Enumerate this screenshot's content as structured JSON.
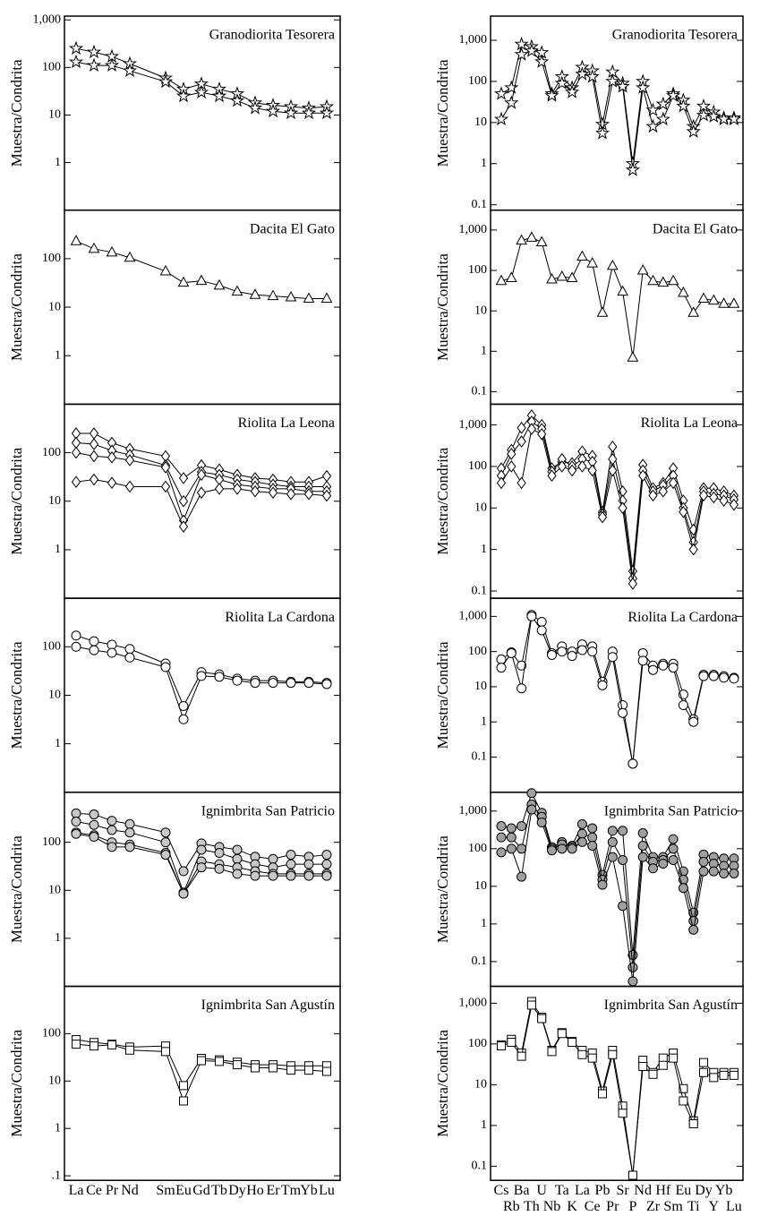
{
  "chart_data": [
    {
      "type": "line",
      "title": "Granodiorita Tesorera",
      "ylabel": "Muestra/Condrita",
      "marker": "star",
      "fill": "#ffffff",
      "ylim": [
        0.1,
        1200
      ],
      "yticks": [
        1,
        10,
        100,
        {
          "value": 1000,
          "label": "1,000"
        }
      ],
      "series": [
        {
          "color": "#000000",
          "values": [
            250,
            210,
            170,
            120,
            60,
            35,
            45,
            35,
            28,
            18,
            16,
            15,
            14,
            15
          ]
        },
        {
          "color": "#000000",
          "values": [
            130,
            110,
            110,
            85,
            50,
            25,
            30,
            25,
            20,
            14,
            12,
            11,
            11,
            11
          ]
        }
      ]
    },
    {
      "type": "line",
      "title": "Dacita El Gato",
      "ylabel": "Muestra/Condrita",
      "marker": "triangle",
      "fill": "#ffffff",
      "ylim": [
        0.1,
        1000
      ],
      "yticks": [
        1,
        10,
        100
      ],
      "series": [
        {
          "color": "#000000",
          "values": [
            230,
            160,
            135,
            105,
            55,
            32,
            35,
            28,
            21,
            18,
            17,
            16,
            15,
            15
          ]
        }
      ]
    },
    {
      "type": "line",
      "title": "Riolita La Leona",
      "ylabel": "Muestra/Condrita",
      "marker": "diamond",
      "fill": "#ffffff",
      "ylim": [
        0.1,
        1000
      ],
      "yticks": [
        1,
        10,
        100
      ],
      "series": [
        {
          "color": "#000000",
          "values": [
            250,
            250,
            160,
            120,
            85,
            30,
            55,
            45,
            35,
            30,
            28,
            25,
            25,
            33
          ]
        },
        {
          "color": "#000000",
          "values": [
            160,
            150,
            110,
            90,
            55,
            10,
            40,
            35,
            28,
            25,
            22,
            20,
            20,
            20
          ]
        },
        {
          "color": "#000000",
          "values": [
            100,
            85,
            80,
            70,
            50,
            4,
            35,
            28,
            22,
            20,
            18,
            18,
            16,
            16
          ]
        },
        {
          "color": "#000000",
          "values": [
            25,
            28,
            24,
            20,
            20,
            3,
            15,
            18,
            18,
            16,
            15,
            14,
            14,
            13
          ]
        }
      ]
    },
    {
      "type": "line",
      "title": "Riolita La Cardona",
      "ylabel": "Muestra/Condrita",
      "marker": "circle",
      "fill": "#ffffff",
      "ylim": [
        0.1,
        1000
      ],
      "yticks": [
        1,
        10,
        100
      ],
      "series": [
        {
          "color": "#000000",
          "values": [
            170,
            130,
            110,
            90,
            45,
            6,
            30,
            27,
            22,
            20,
            20,
            19,
            19,
            18
          ]
        },
        {
          "color": "#000000",
          "values": [
            100,
            85,
            75,
            60,
            38,
            3.2,
            25,
            24,
            20,
            18,
            18,
            18,
            18,
            17
          ]
        }
      ]
    },
    {
      "type": "line",
      "title": "Ignimbrita San Patricio",
      "ylabel": "Muestra/Condrita",
      "marker": "circle",
      "fill": "#c8c8c8",
      "ylim": [
        0.1,
        1100
      ],
      "yticks": [
        1,
        10,
        100
      ],
      "series": [
        {
          "color": "#000000",
          "values": [
            400,
            380,
            280,
            240,
            160,
            25,
            95,
            80,
            70,
            50,
            45,
            55,
            50,
            55
          ]
        },
        {
          "color": "#000000",
          "values": [
            270,
            230,
            180,
            160,
            100,
            9,
            70,
            60,
            45,
            35,
            30,
            35,
            35,
            35
          ]
        },
        {
          "color": "#000000",
          "values": [
            160,
            140,
            100,
            90,
            60,
            8.5,
            40,
            35,
            30,
            25,
            22,
            22,
            22,
            22
          ]
        },
        {
          "color": "#000000",
          "values": [
            150,
            130,
            80,
            80,
            55,
            8.5,
            30,
            28,
            22,
            20,
            20,
            20,
            20,
            20
          ]
        }
      ]
    },
    {
      "type": "line",
      "title": "Ignimbrita San Agustín",
      "ylabel": "Muestra/Condrita",
      "marker": "square",
      "fill": "#ffffff",
      "ylim": [
        0.08,
        1000
      ],
      "yticks": [
        {
          "value": 0.1,
          "label": ".1"
        },
        1,
        10,
        100
      ],
      "categories": [
        "La",
        "Ce",
        "Pr",
        "Nd",
        "Sm",
        "Eu",
        "Gd",
        "Tb",
        "Dy",
        "Ho",
        "Er",
        "Tm",
        "Yb",
        "Lu"
      ],
      "series": [
        {
          "color": "#000000",
          "values": [
            75,
            65,
            60,
            52,
            55,
            8,
            30,
            28,
            25,
            22,
            22,
            21,
            21,
            21
          ]
        },
        {
          "color": "#000000",
          "values": [
            60,
            55,
            58,
            45,
            42,
            3.8,
            27,
            26,
            22,
            19,
            19,
            17,
            17,
            16
          ]
        }
      ]
    },
    {
      "type": "line",
      "title": "Granodiorita Tesorera",
      "ylabel": "Muestra/Condrita",
      "marker": "star",
      "fill": "#ffffff",
      "ylim": [
        0.074,
        3870
      ],
      "yticks": [
        0.1,
        1,
        10,
        100,
        {
          "value": 1000,
          "label": "1,000"
        }
      ],
      "series": [
        {
          "color": "#000000",
          "values": [
            50,
            70,
            800,
            700,
            500,
            50,
            130,
            70,
            220,
            180,
            9,
            170,
            90,
            1,
            100,
            20,
            28,
            50,
            35,
            8,
            25,
            18,
            13,
            13
          ]
        },
        {
          "color": "#000000",
          "values": [
            12,
            30,
            450,
            550,
            300,
            45,
            90,
            55,
            150,
            130,
            5.5,
            100,
            75,
            0.7,
            70,
            8,
            12,
            45,
            25,
            6,
            15,
            14,
            12,
            12
          ]
        }
      ]
    },
    {
      "type": "line",
      "title": "Dacita El Gato",
      "ylabel": "Muestra/Condrita",
      "marker": "triangle",
      "fill": "#ffffff",
      "ylim": [
        0.049,
        3100
      ],
      "yticks": [
        0.1,
        1,
        10,
        100,
        {
          "value": 1000,
          "label": "1,000"
        }
      ],
      "series": [
        {
          "color": "#000000",
          "values": [
            55,
            65,
            550,
            650,
            500,
            60,
            70,
            65,
            220,
            150,
            9,
            130,
            30,
            0.7,
            100,
            55,
            50,
            55,
            28,
            9,
            20,
            18,
            15,
            15
          ]
        }
      ]
    },
    {
      "type": "line",
      "title": "Riolita La Leona",
      "ylabel": "Muestra/Condrita",
      "marker": "diamond",
      "fill": "#ffffff",
      "ylim": [
        0.067,
        3160
      ],
      "yticks": [
        0.1,
        1,
        10,
        100,
        {
          "value": 1000,
          "label": "1,000"
        }
      ],
      "series": [
        {
          "color": "#000000",
          "values": [
            90,
            250,
            850,
            1700,
            1000,
            90,
            130,
            120,
            230,
            180,
            8,
            300,
            25,
            0.3,
            110,
            30,
            40,
            90,
            15,
            3,
            30,
            30,
            25,
            20
          ]
        },
        {
          "color": "#000000",
          "values": [
            60,
            200,
            400,
            1200,
            800,
            75,
            150,
            100,
            150,
            130,
            7,
            150,
            15,
            0.2,
            80,
            25,
            35,
            60,
            10,
            1.5,
            25,
            22,
            20,
            16
          ]
        },
        {
          "color": "#000000",
          "values": [
            40,
            100,
            40,
            800,
            600,
            60,
            100,
            80,
            100,
            80,
            6,
            80,
            10,
            0.15,
            60,
            20,
            25,
            40,
            8,
            1,
            20,
            18,
            15,
            12
          ]
        }
      ]
    },
    {
      "type": "line",
      "title": "Riolita La Cardona",
      "ylabel": "Muestra/Condrita",
      "marker": "circle",
      "fill": "#ffffff",
      "ylim": [
        0.01,
        3280
      ],
      "yticks": [
        0.1,
        1,
        10,
        100,
        {
          "value": 1000,
          "label": "1,000"
        }
      ],
      "series": [
        {
          "color": "#000000",
          "values": [
            60,
            95,
            40,
            1100,
            700,
            90,
            140,
            100,
            160,
            140,
            14,
            100,
            3,
            0.065,
            90,
            40,
            45,
            45,
            6,
            1.2,
            22,
            22,
            20,
            18
          ]
        },
        {
          "color": "#000000",
          "values": [
            35,
            90,
            9,
            1000,
            400,
            80,
            100,
            75,
            110,
            100,
            11,
            70,
            1.8,
            0.065,
            55,
            30,
            40,
            35,
            3,
            1,
            20,
            20,
            18,
            17
          ]
        }
      ]
    },
    {
      "type": "line",
      "title": "Ignimbrita San Patricio",
      "ylabel": "Muestra/Condrita",
      "marker": "circle",
      "fill": "#a0a0a0",
      "ylim": [
        0.022,
        3160
      ],
      "yticks": [
        0.1,
        1,
        10,
        100,
        {
          "value": 1000,
          "label": "1,000"
        }
      ],
      "series": [
        {
          "color": "#000000",
          "values": [
            400,
            350,
            400,
            3000,
            900,
            110,
            150,
            120,
            450,
            350,
            20,
            300,
            300,
            0.15,
            260,
            60,
            60,
            180,
            25,
            2,
            70,
            60,
            55,
            55
          ]
        },
        {
          "color": "#000000",
          "values": [
            200,
            200,
            100,
            1500,
            700,
            100,
            130,
            110,
            250,
            200,
            15,
            150,
            50,
            0.07,
            120,
            45,
            50,
            100,
            15,
            1.2,
            45,
            40,
            35,
            35
          ]
        },
        {
          "color": "#000000",
          "values": [
            80,
            100,
            18,
            1100,
            500,
            90,
            100,
            100,
            150,
            120,
            11,
            60,
            3,
            0.03,
            60,
            30,
            40,
            50,
            9,
            0.7,
            25,
            25,
            22,
            22
          ]
        }
      ]
    },
    {
      "type": "line",
      "title": "Ignimbrita San Agustín",
      "ylabel": "Muestra/Condrita",
      "marker": "square",
      "fill": "#ffffff",
      "ylim": [
        0.045,
        2600
      ],
      "yticks": [
        0.1,
        1,
        10,
        100,
        {
          "value": 1000,
          "label": "1,000"
        }
      ],
      "categories": [
        "Cs",
        "Rb",
        "Ba",
        "Th",
        "U",
        "Nb",
        "Ta",
        "K",
        "La",
        "Ce",
        "Pb",
        "Pr",
        "Sr",
        "P",
        "Nd",
        "Zr",
        "Hf",
        "Sm",
        "Eu",
        "Ti",
        "Dy",
        "Y",
        "Yb",
        "Lu"
      ],
      "series": [
        {
          "color": "#000000",
          "values": [
            95,
            130,
            60,
            1100,
            450,
            70,
            190,
            115,
            70,
            60,
            7,
            70,
            3,
            0.06,
            40,
            20,
            45,
            60,
            8,
            1.3,
            35,
            20,
            20,
            20
          ]
        },
        {
          "color": "#000000",
          "values": [
            90,
            110,
            50,
            900,
            420,
            65,
            180,
            110,
            55,
            45,
            6,
            55,
            2,
            0.06,
            28,
            18,
            30,
            45,
            4,
            1.1,
            20,
            15,
            17,
            17
          ]
        }
      ]
    }
  ]
}
